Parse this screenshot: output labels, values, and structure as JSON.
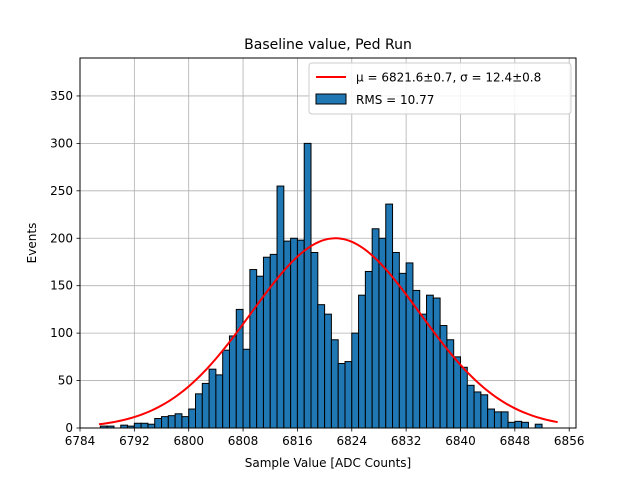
{
  "chart_data": {
    "type": "bar",
    "title": "Baseline value, Ped Run",
    "xlabel": "Sample Value [ADC Counts]",
    "ylabel": "Events",
    "xlim": [
      6784,
      6857
    ],
    "ylim": [
      0,
      390
    ],
    "xticks": [
      6784,
      6792,
      6800,
      6808,
      6816,
      6824,
      6832,
      6840,
      6848,
      6856
    ],
    "yticks": [
      0,
      50,
      100,
      150,
      200,
      250,
      300,
      350
    ],
    "grid": true,
    "legend_position": "top-right",
    "bin_width": 1,
    "histogram": {
      "name": "RMS = 10.77",
      "color": "#1f77b4",
      "bin_starts": [
        6787,
        6788,
        6789,
        6790,
        6791,
        6792,
        6793,
        6794,
        6795,
        6796,
        6797,
        6798,
        6799,
        6800,
        6801,
        6802,
        6803,
        6804,
        6805,
        6806,
        6807,
        6808,
        6809,
        6810,
        6811,
        6812,
        6813,
        6814,
        6815,
        6816,
        6817,
        6818,
        6819,
        6820,
        6821,
        6822,
        6823,
        6824,
        6825,
        6826,
        6827,
        6828,
        6829,
        6830,
        6831,
        6832,
        6833,
        6834,
        6835,
        6836,
        6837,
        6838,
        6839,
        6840,
        6841,
        6842,
        6843,
        6844,
        6845,
        6846,
        6847,
        6848,
        6849,
        6850,
        6851
      ],
      "counts": [
        2,
        2,
        0,
        3,
        2,
        5,
        5,
        4,
        10,
        12,
        13,
        15,
        12,
        20,
        36,
        47,
        62,
        56,
        82,
        97,
        125,
        83,
        167,
        160,
        180,
        183,
        255,
        197,
        200,
        198,
        300,
        185,
        130,
        120,
        93,
        68,
        70,
        100,
        140,
        165,
        210,
        200,
        236,
        185,
        163,
        174,
        145,
        120,
        140,
        137,
        108,
        93,
        75,
        64,
        45,
        38,
        35,
        20,
        17,
        17,
        6,
        7,
        6,
        0,
        4
      ]
    },
    "fit": {
      "type": "gaussian",
      "color": "#ff0000",
      "label": "μ = 6821.6±0.7, σ = 12.4±0.8",
      "mu": 6821.6,
      "sigma": 12.4,
      "amplitude": 200,
      "x_range": [
        6786.8,
        6854.3
      ]
    }
  }
}
